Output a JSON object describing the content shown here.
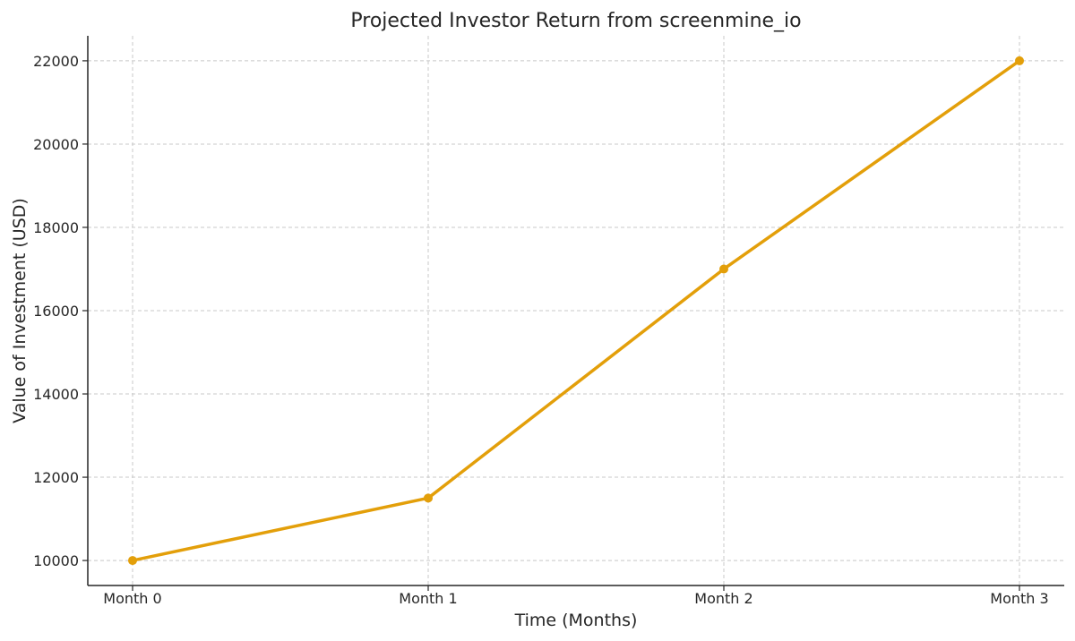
{
  "chart_data": {
    "type": "line",
    "title": "Projected Investor Return from screenmine_io",
    "xlabel": "Time (Months)",
    "ylabel": "Value of Investment (USD)",
    "categories": [
      "Month 0",
      "Month 1",
      "Month 2",
      "Month 3"
    ],
    "series": [
      {
        "values": [
          10000,
          11500,
          17000,
          22000
        ],
        "color": "#E39F0A"
      }
    ],
    "ylim": [
      9400,
      22600
    ],
    "yticks": [
      10000,
      12000,
      14000,
      16000,
      18000,
      20000,
      22000
    ],
    "grid": true,
    "legend": "none"
  }
}
